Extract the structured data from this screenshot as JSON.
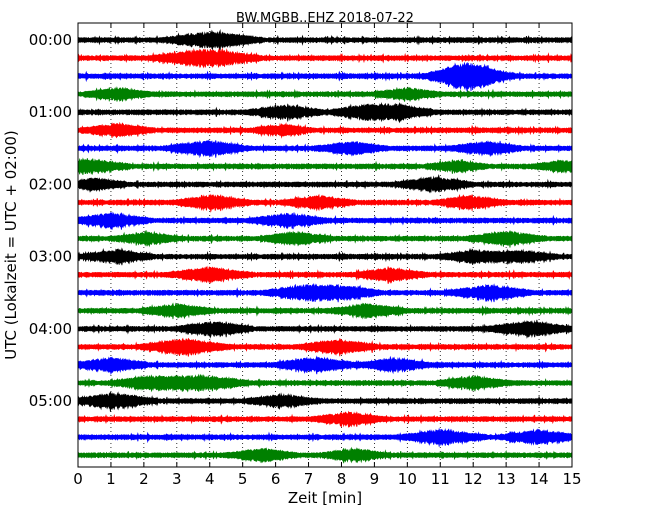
{
  "chart_data": {
    "type": "line",
    "subtype": "seismogram-helicorder",
    "title": "BW.MGBB..EHZ 2018-07-22",
    "xlabel": "Zeit  [min]",
    "ylabel": "UTC (Lokalzeit = UTC + 02:00)",
    "xlim": [
      0,
      15
    ],
    "x_ticks": [
      0,
      1,
      2,
      3,
      4,
      5,
      6,
      7,
      8,
      9,
      10,
      11,
      12,
      13,
      14,
      15
    ],
    "x_tick_labels": [
      "0",
      "1",
      "2",
      "3",
      "4",
      "5",
      "6",
      "7",
      "8",
      "9",
      "10",
      "11",
      "12",
      "13",
      "14",
      "15"
    ],
    "y_tick_labels": [
      "00:00",
      "01:00",
      "02:00",
      "03:00",
      "04:00",
      "05:00"
    ],
    "grid": {
      "x": "dotted",
      "y": "none"
    },
    "trace_interval_min": 15,
    "trace_colors": [
      "#000000",
      "#ff0000",
      "#0000ff",
      "#008000"
    ],
    "series": [
      {
        "start": "00:00",
        "color": "#000000",
        "bursts": [
          [
            4.1,
            1.6
          ]
        ]
      },
      {
        "start": "00:15",
        "color": "#ff0000",
        "bursts": [
          [
            3.9,
            1.8
          ]
        ]
      },
      {
        "start": "00:30",
        "color": "#0000ff",
        "bursts": [
          [
            11.5,
            1.2
          ],
          [
            11.8,
            1.2
          ],
          [
            12.3,
            1.2
          ]
        ]
      },
      {
        "start": "00:45",
        "color": "#008000",
        "bursts": [
          [
            1.2,
            1.1
          ],
          [
            10.0,
            1.1
          ]
        ]
      },
      {
        "start": "01:00",
        "color": "#000000",
        "bursts": [
          [
            6.3,
            1.3
          ],
          [
            8.8,
            1.3
          ],
          [
            9.8,
            1.2
          ]
        ]
      },
      {
        "start": "01:15",
        "color": "#ff0000",
        "bursts": [
          [
            1.2,
            1.2
          ],
          [
            6.2,
            1.0
          ]
        ]
      },
      {
        "start": "01:30",
        "color": "#0000ff",
        "bursts": [
          [
            3.9,
            1.4
          ],
          [
            8.3,
            1.2
          ],
          [
            12.4,
            1.2
          ]
        ]
      },
      {
        "start": "01:45",
        "color": "#008000",
        "bursts": [
          [
            0.3,
            1.4
          ],
          [
            11.5,
            1.0
          ],
          [
            14.7,
            1.0
          ]
        ]
      },
      {
        "start": "02:00",
        "color": "#000000",
        "bursts": [
          [
            0.5,
            1.1
          ],
          [
            10.8,
            1.3
          ]
        ]
      },
      {
        "start": "02:15",
        "color": "#ff0000",
        "bursts": [
          [
            4.1,
            1.3
          ],
          [
            7.3,
            1.2
          ],
          [
            11.9,
            1.2
          ]
        ]
      },
      {
        "start": "02:30",
        "color": "#0000ff",
        "bursts": [
          [
            1.0,
            1.3
          ],
          [
            6.4,
            1.3
          ]
        ]
      },
      {
        "start": "02:45",
        "color": "#008000",
        "bursts": [
          [
            2.1,
            1.1
          ],
          [
            6.6,
            1.2
          ],
          [
            13.0,
            1.3
          ]
        ]
      },
      {
        "start": "03:00",
        "color": "#000000",
        "bursts": [
          [
            1.2,
            1.2
          ],
          [
            12.1,
            1.2
          ],
          [
            13.5,
            1.1
          ]
        ]
      },
      {
        "start": "03:15",
        "color": "#ff0000",
        "bursts": [
          [
            4.0,
            1.4
          ],
          [
            9.5,
            1.2
          ]
        ]
      },
      {
        "start": "03:30",
        "color": "#0000ff",
        "bursts": [
          [
            6.8,
            1.3
          ],
          [
            8.0,
            1.3
          ],
          [
            12.5,
            1.4
          ]
        ]
      },
      {
        "start": "03:45",
        "color": "#008000",
        "bursts": [
          [
            3.0,
            1.2
          ],
          [
            8.8,
            1.3
          ]
        ]
      },
      {
        "start": "04:00",
        "color": "#000000",
        "bursts": [
          [
            4.1,
            1.3
          ],
          [
            13.7,
            1.4
          ]
        ]
      },
      {
        "start": "04:15",
        "color": "#ff0000",
        "bursts": [
          [
            3.2,
            1.5
          ],
          [
            7.9,
            1.3
          ]
        ]
      },
      {
        "start": "04:30",
        "color": "#0000ff",
        "bursts": [
          [
            1.0,
            1.3
          ],
          [
            7.2,
            1.4
          ],
          [
            9.6,
            1.2
          ]
        ]
      },
      {
        "start": "04:45",
        "color": "#008000",
        "bursts": [
          [
            2.2,
            1.3
          ],
          [
            3.8,
            1.5
          ],
          [
            12.0,
            1.2
          ]
        ]
      },
      {
        "start": "05:00",
        "color": "#000000",
        "bursts": [
          [
            1.1,
            1.4
          ],
          [
            6.2,
            1.2
          ]
        ]
      },
      {
        "start": "05:15",
        "color": "#ff0000",
        "bursts": [
          [
            8.2,
            1.2
          ]
        ]
      },
      {
        "start": "05:30",
        "color": "#0000ff",
        "bursts": [
          [
            11.1,
            1.4
          ],
          [
            14.0,
            1.3
          ]
        ]
      },
      {
        "start": "05:45",
        "color": "#008000",
        "bursts": [
          [
            5.6,
            1.2
          ],
          [
            8.4,
            1.1
          ]
        ]
      }
    ]
  }
}
